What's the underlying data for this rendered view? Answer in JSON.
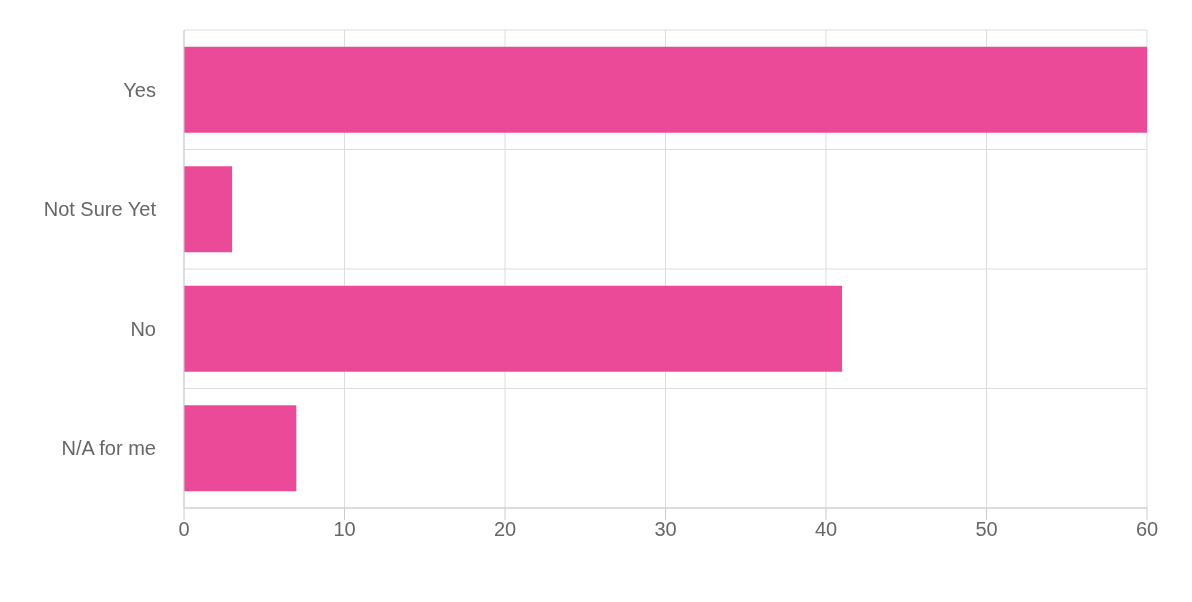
{
  "chart_data": {
    "type": "bar",
    "orientation": "horizontal",
    "categories": [
      "Yes",
      "Not Sure Yet",
      "No",
      "N/A for me"
    ],
    "values": [
      60,
      3,
      41,
      7
    ],
    "color": "#eb4a99",
    "xlim": [
      0,
      60
    ],
    "xticks": [
      0,
      10,
      20,
      30,
      40,
      50,
      60
    ],
    "grid": true
  }
}
